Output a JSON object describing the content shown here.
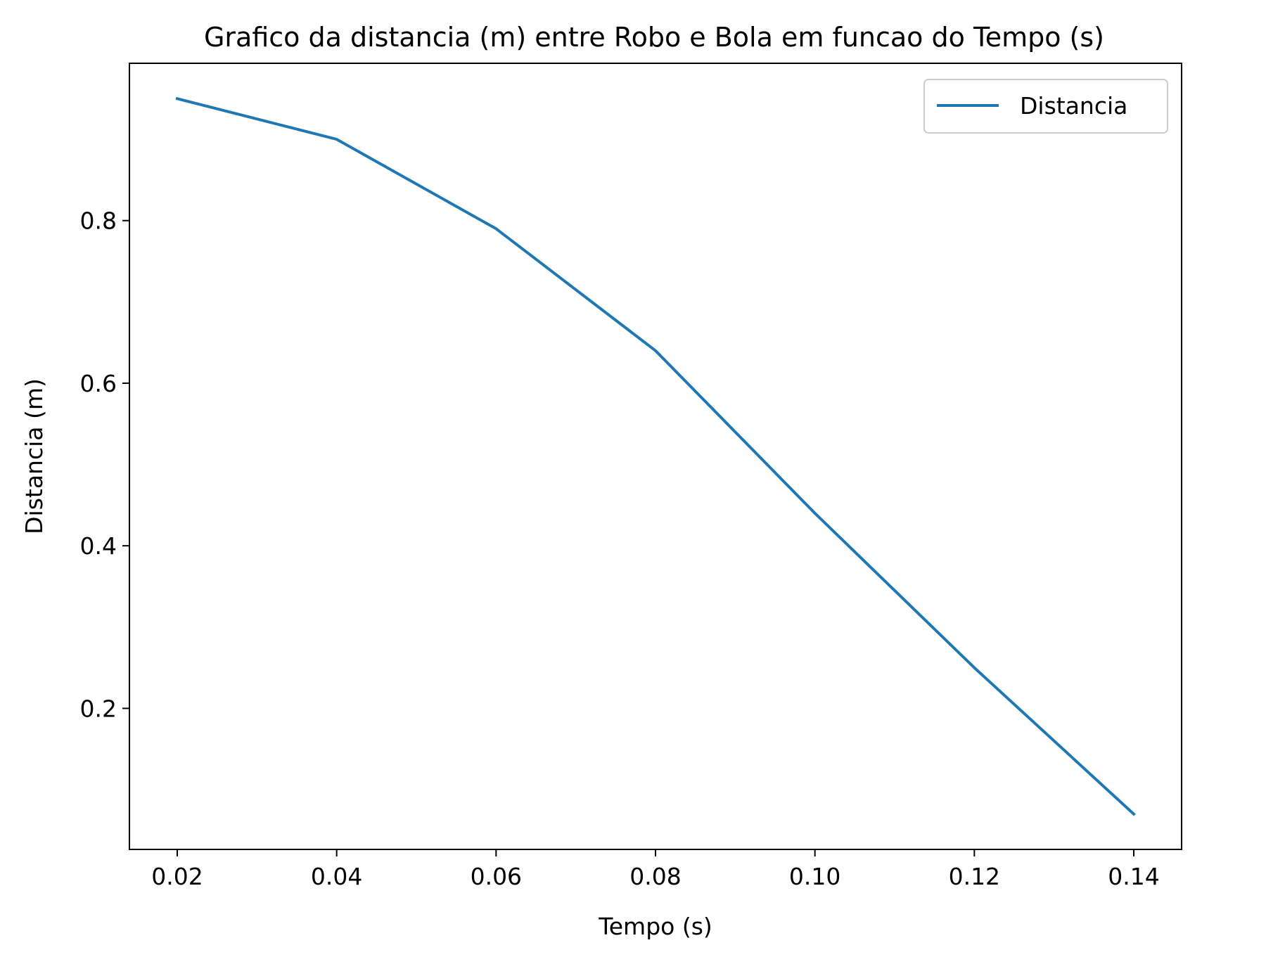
{
  "chart_data": {
    "type": "line",
    "title": "Grafico da distancia (m) entre Robo e Bola em funcao do Tempo (s)",
    "xlabel": "Tempo (s)",
    "ylabel": "Distancia (m)",
    "xlim": [
      0.014,
      0.146
    ],
    "ylim": [
      0.0265,
      0.9935
    ],
    "x_ticks": [
      0.02,
      0.04,
      0.06,
      0.08,
      0.1,
      0.12,
      0.14
    ],
    "x_tick_labels": [
      "0.02",
      "0.04",
      "0.06",
      "0.08",
      "0.10",
      "0.12",
      "0.14"
    ],
    "y_ticks": [
      0.2,
      0.4,
      0.6,
      0.8
    ],
    "y_tick_labels": [
      "0.2",
      "0.4",
      "0.6",
      "0.8"
    ],
    "grid": false,
    "legend": {
      "placement": "top-right"
    },
    "series": [
      {
        "name": "Distancia",
        "color": "#1f77b4",
        "x": [
          0.02,
          0.04,
          0.06,
          0.08,
          0.1,
          0.12,
          0.14
        ],
        "y": [
          0.95,
          0.9,
          0.79,
          0.64,
          0.44,
          0.25,
          0.07
        ]
      }
    ]
  }
}
